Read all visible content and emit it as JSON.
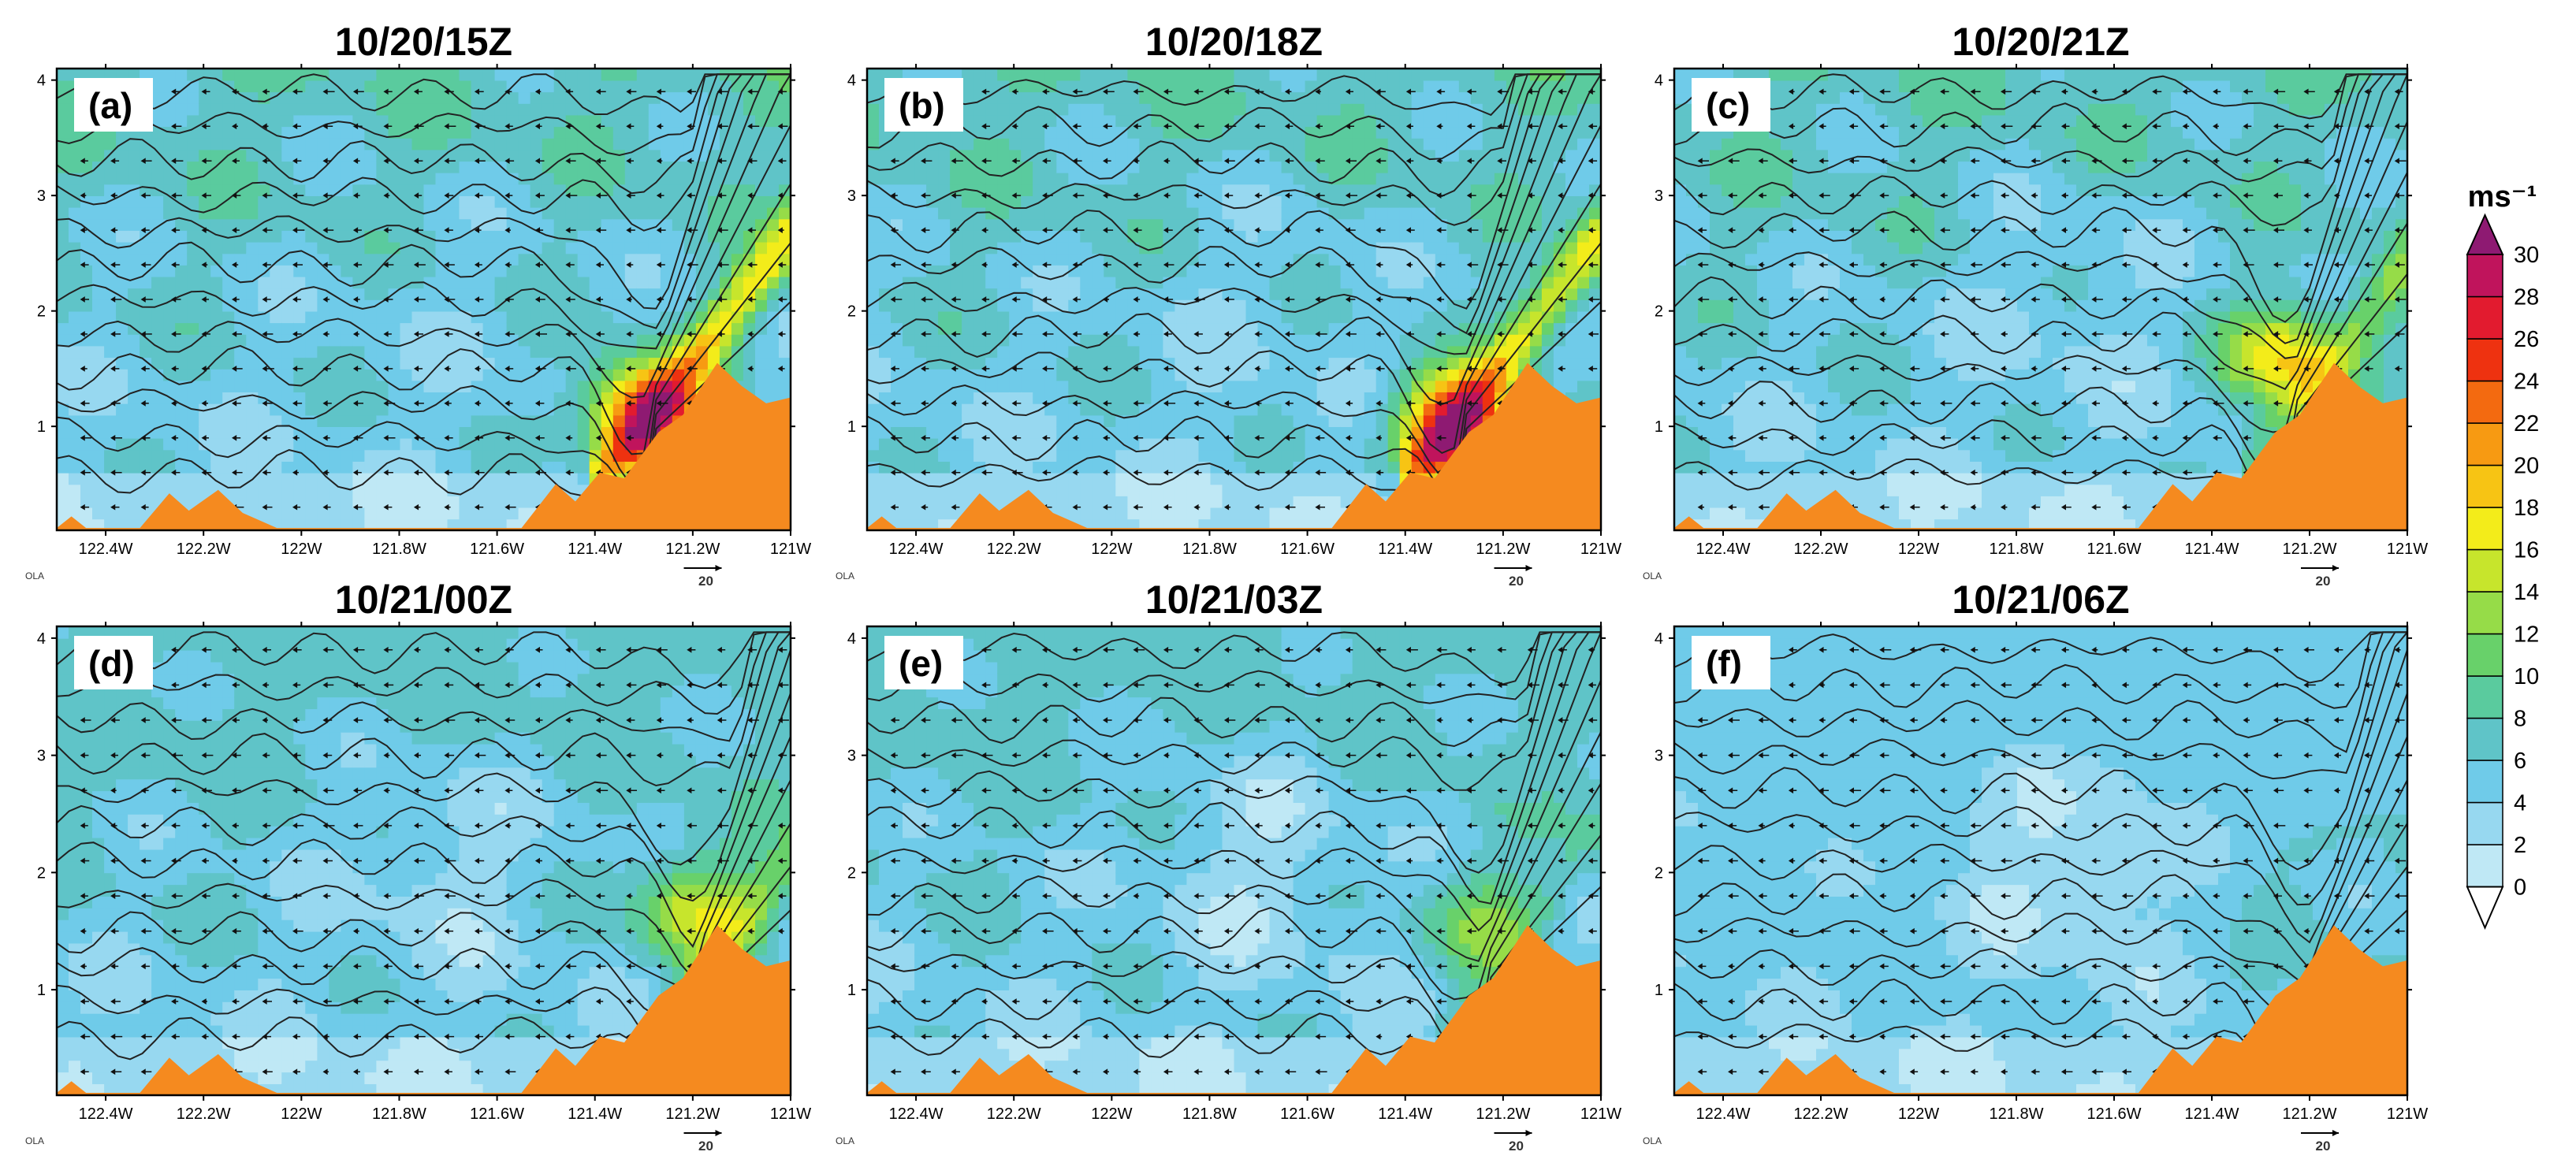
{
  "chart_data": {
    "type": "heatmap",
    "description_vars": "cross-section wind speed with potential temperature contours and wind vectors",
    "x_ticks": [
      "122.4W",
      "122.2W",
      "122W",
      "121.8W",
      "121.6W",
      "121.4W",
      "121.2W",
      "121W"
    ],
    "x_values": [
      -122.4,
      -122.2,
      -122.0,
      -121.8,
      -121.6,
      -121.4,
      -121.2,
      -121.0
    ],
    "xlim": [
      -122.5,
      -121.0
    ],
    "y_ticks": [
      "1",
      "2",
      "3",
      "4"
    ],
    "y_values": [
      1,
      2,
      3,
      4
    ],
    "ylim": [
      0.1,
      4.1
    ],
    "vector_ref_label": "20",
    "source_label": "OLA",
    "colorbar": {
      "unit": "ms⁻¹",
      "levels": [
        0,
        2,
        4,
        6,
        8,
        10,
        12,
        14,
        16,
        18,
        20,
        22,
        24,
        26,
        28,
        30
      ],
      "colors": [
        "#e0f5fa",
        "#bfe8f5",
        "#97d8f0",
        "#6fcbe9",
        "#5fc4c8",
        "#5acb9e",
        "#68d16a",
        "#96dc48",
        "#c7e52c",
        "#f3ec1a",
        "#f7c414",
        "#f79a12",
        "#f36a10",
        "#ee3210",
        "#e21b2f",
        "#c0145c",
        "#8e1a72"
      ]
    },
    "panels": [
      {
        "title": "10/20/15Z",
        "label": "(a)",
        "jet_peak_ms": 26,
        "jet_x": -121.3,
        "jet_z": 1.1,
        "offshore_max_ms": 12
      },
      {
        "title": "10/20/18Z",
        "label": "(b)",
        "jet_peak_ms": 26,
        "jet_x": -121.3,
        "jet_z": 1.0,
        "offshore_max_ms": 12
      },
      {
        "title": "10/20/21Z",
        "label": "(c)",
        "jet_peak_ms": 18,
        "jet_x": -121.25,
        "jet_z": 1.6,
        "offshore_max_ms": 10
      },
      {
        "title": "10/21/00Z",
        "label": "(d)",
        "jet_peak_ms": 16,
        "jet_x": -121.2,
        "jet_z": 1.7,
        "offshore_max_ms": 8
      },
      {
        "title": "10/21/03Z",
        "label": "(e)",
        "jet_peak_ms": 12,
        "jet_x": -121.25,
        "jet_z": 1.6,
        "offshore_max_ms": 8
      },
      {
        "title": "10/21/06Z",
        "label": "(f)",
        "jet_peak_ms": 8,
        "jet_x": -121.2,
        "jet_z": 1.5,
        "offshore_max_ms": 6
      }
    ]
  }
}
